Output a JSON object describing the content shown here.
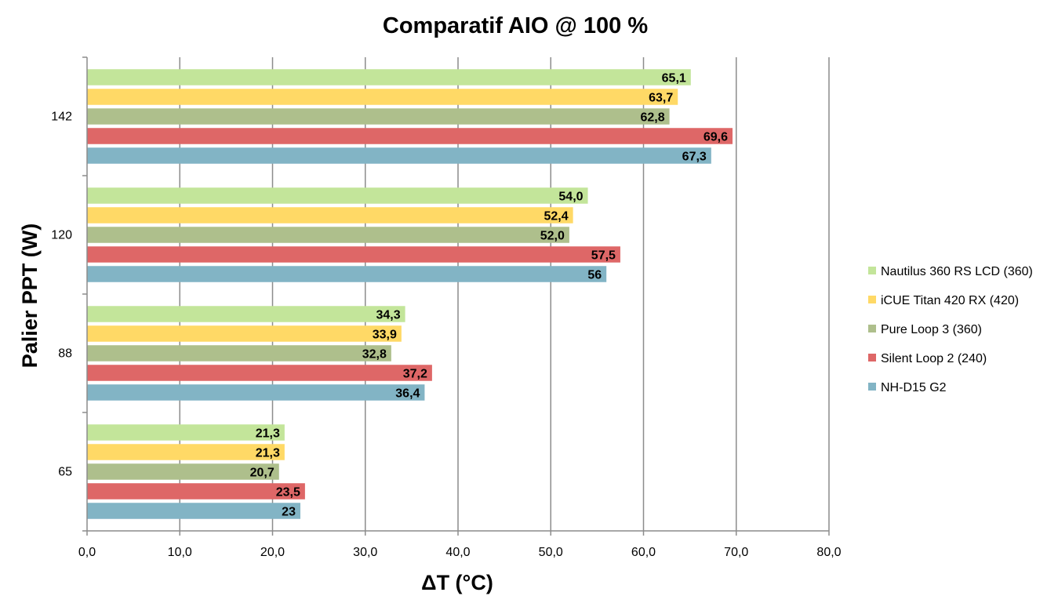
{
  "chart_data": {
    "type": "bar",
    "orientation": "horizontal",
    "title": "Comparatif AIO @ 100 %",
    "xlabel": "ΔT (°C)",
    "ylabel": "Palier PPT (W)",
    "xlim": [
      0,
      80
    ],
    "x_ticks": [
      "0,0",
      "10,0",
      "20,0",
      "30,0",
      "40,0",
      "50,0",
      "60,0",
      "70,0",
      "80,0"
    ],
    "categories": [
      "142",
      "120",
      "88",
      "65"
    ],
    "legend_position": "right",
    "series": [
      {
        "name": "Nautilus 360 RS LCD (360)",
        "color": "#c3e59a",
        "values": [
          65.1,
          54.0,
          34.3,
          21.3
        ],
        "labels": [
          "65,1",
          "54,0",
          "34,3",
          "21,3"
        ]
      },
      {
        "name": "iCUE Titan 420 RX (420)",
        "color": "#ffd966",
        "values": [
          63.7,
          52.4,
          33.9,
          21.3
        ],
        "labels": [
          "63,7",
          "52,4",
          "33,9",
          "21,3"
        ]
      },
      {
        "name": "Pure Loop 3 (360)",
        "color": "#aebf8c",
        "values": [
          62.8,
          52.0,
          32.8,
          20.7
        ],
        "labels": [
          "62,8",
          "52,0",
          "32,8",
          "20,7"
        ]
      },
      {
        "name": "Silent Loop 2 (240)",
        "color": "#de6767",
        "values": [
          69.6,
          57.5,
          37.2,
          23.5
        ],
        "labels": [
          "69,6",
          "57,5",
          "37,2",
          "23,5"
        ]
      },
      {
        "name": "NH-D15 G2",
        "color": "#82b4c5",
        "values": [
          67.3,
          56,
          36.4,
          23
        ],
        "labels": [
          "67,3",
          "56",
          "36,4",
          "23"
        ]
      }
    ]
  }
}
